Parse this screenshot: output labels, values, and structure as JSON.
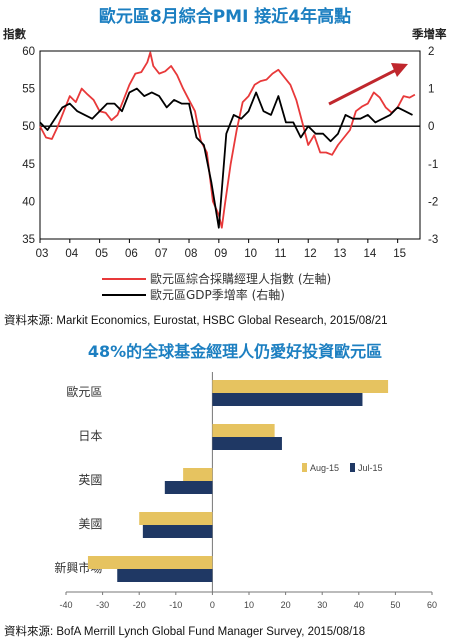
{
  "colors": {
    "title": "#1c7fc1",
    "pmi_line": "#e8393a",
    "gdp_line": "#000000",
    "arrow": "#c0272d",
    "aug_bar": "#e6c360",
    "jul_bar": "#1f3864"
  },
  "chart_data": [
    {
      "type": "line",
      "title": "歐元區8月綜合PMI 接近4年高點",
      "ylabel": "指數",
      "y2label": "季增率",
      "ylim": [
        35,
        60
      ],
      "yticks": [
        35,
        40,
        45,
        50,
        55,
        60
      ],
      "y2lim": [
        -3,
        2
      ],
      "y2ticks": [
        -3,
        -2,
        -1,
        0,
        1,
        2
      ],
      "x_ticks": [
        "03",
        "04",
        "05",
        "06",
        "07",
        "08",
        "09",
        "10",
        "11",
        "12",
        "13",
        "14",
        "15"
      ],
      "xlim": [
        2003,
        2015.75
      ],
      "series": [
        {
          "name": "歐元區綜合採購經理人指數 (左軸)",
          "axis": "left",
          "x": [
            2003.0,
            2003.2,
            2003.4,
            2003.6,
            2003.8,
            2004.0,
            2004.2,
            2004.4,
            2004.6,
            2004.8,
            2005.0,
            2005.2,
            2005.4,
            2005.6,
            2005.8,
            2006.0,
            2006.2,
            2006.4,
            2006.6,
            2006.7,
            2006.8,
            2007.0,
            2007.2,
            2007.4,
            2007.6,
            2007.8,
            2008.0,
            2008.2,
            2008.4,
            2008.6,
            2008.8,
            2009.0,
            2009.1,
            2009.2,
            2009.4,
            2009.6,
            2009.8,
            2010.0,
            2010.2,
            2010.4,
            2010.6,
            2010.8,
            2011.0,
            2011.2,
            2011.4,
            2011.6,
            2011.8,
            2012.0,
            2012.2,
            2012.4,
            2012.6,
            2012.8,
            2013.0,
            2013.2,
            2013.4,
            2013.6,
            2013.8,
            2014.0,
            2014.2,
            2014.4,
            2014.6,
            2014.8,
            2015.0,
            2015.2,
            2015.4,
            2015.58
          ],
          "values": [
            50,
            48.5,
            48.3,
            50,
            52,
            54,
            53.2,
            55,
            54.2,
            53.5,
            52,
            51.8,
            50.8,
            51.5,
            53.5,
            55.5,
            57,
            57.2,
            58.5,
            59.8,
            58,
            57,
            57.3,
            58,
            56.8,
            55,
            53.5,
            52,
            48,
            46.5,
            40,
            38.2,
            36.5,
            39.5,
            45,
            49.5,
            53.2,
            54,
            55.5,
            56,
            56.2,
            57,
            57.5,
            56.5,
            55.5,
            53.5,
            50.5,
            47.5,
            48.8,
            46.5,
            46.5,
            46.2,
            47.5,
            48.5,
            49.5,
            52,
            52.6,
            53,
            54.5,
            53.8,
            52.5,
            51.8,
            52.5,
            54,
            53.8,
            54.2
          ]
        },
        {
          "name": "歐元區GDP季增率 (右軸)",
          "axis": "right",
          "x": [
            2003.0,
            2003.25,
            2003.5,
            2003.75,
            2004.0,
            2004.25,
            2004.5,
            2004.75,
            2005.0,
            2005.25,
            2005.5,
            2005.75,
            2006.0,
            2006.25,
            2006.5,
            2006.75,
            2007.0,
            2007.25,
            2007.5,
            2007.75,
            2008.0,
            2008.25,
            2008.5,
            2008.75,
            2009.0,
            2009.25,
            2009.5,
            2009.75,
            2010.0,
            2010.25,
            2010.5,
            2010.75,
            2011.0,
            2011.25,
            2011.5,
            2011.75,
            2012.0,
            2012.25,
            2012.5,
            2012.75,
            2013.0,
            2013.25,
            2013.5,
            2013.75,
            2014.0,
            2014.25,
            2014.5,
            2014.75,
            2015.0,
            2015.25,
            2015.5
          ],
          "values": [
            0.1,
            -0.1,
            0.2,
            0.5,
            0.6,
            0.4,
            0.3,
            0.2,
            0.4,
            0.6,
            0.6,
            0.4,
            0.9,
            1.0,
            0.8,
            0.9,
            0.8,
            0.5,
            0.7,
            0.6,
            0.6,
            -0.3,
            -0.5,
            -1.5,
            -2.7,
            -0.2,
            0.3,
            0.2,
            0.4,
            0.9,
            0.4,
            0.3,
            0.8,
            0.1,
            0.1,
            -0.3,
            0.0,
            -0.2,
            -0.2,
            -0.4,
            -0.2,
            0.3,
            0.2,
            0.2,
            0.3,
            0.1,
            0.2,
            0.3,
            0.5,
            0.4,
            0.3
          ]
        }
      ],
      "legend_position": "bottom",
      "source": "資料來源: Markit Economics, Eurostat, HSBC Global Research, 2015/08/21"
    },
    {
      "type": "bar",
      "orientation": "horizontal",
      "title": "48%的全球基金經理人仍愛好投資歐元區",
      "categories": [
        "歐元區",
        "日本",
        "英國",
        "美國",
        "新興市場"
      ],
      "series": [
        {
          "name": "Aug-15",
          "values": [
            48,
            17,
            -8,
            -20,
            -34
          ]
        },
        {
          "name": "Jul-15",
          "values": [
            41,
            19,
            -13,
            -19,
            -26
          ]
        }
      ],
      "xlim": [
        -40,
        60
      ],
      "xticks": [
        -40,
        -30,
        -20,
        -10,
        0,
        10,
        20,
        30,
        40,
        50,
        60
      ],
      "legend_position": "right-center",
      "source": "資料來源: BofA Merrill Lynch Global Fund Manager Survey, 2015/08/18"
    }
  ]
}
